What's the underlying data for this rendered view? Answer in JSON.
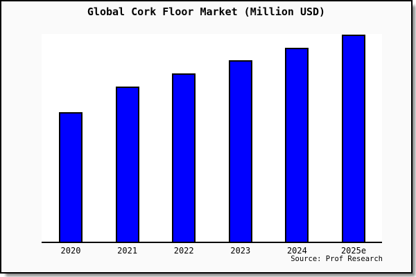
{
  "card": {
    "background": "#fafafa",
    "border_color": "#000000",
    "shadow_color": "#8a8a8a"
  },
  "chart_data": {
    "type": "bar",
    "title": "Global Cork Floor Market (Million USD)",
    "categories": [
      "2020",
      "2021",
      "2022",
      "2023",
      "2024",
      "2025e"
    ],
    "values": [
      62.8,
      75.1,
      81.4,
      87.7,
      93.7,
      100
    ],
    "value_note": "y-axis unlabeled; values are relative, normalized to 2025e = 100",
    "xlabel": "",
    "ylabel": "",
    "y_axis_ticks": [],
    "grid": false,
    "legend": false,
    "bar_color": "#0000ff",
    "bar_border_color": "#000000",
    "plot_background": "#ffffff",
    "source_note": "Source: Prof Research"
  }
}
